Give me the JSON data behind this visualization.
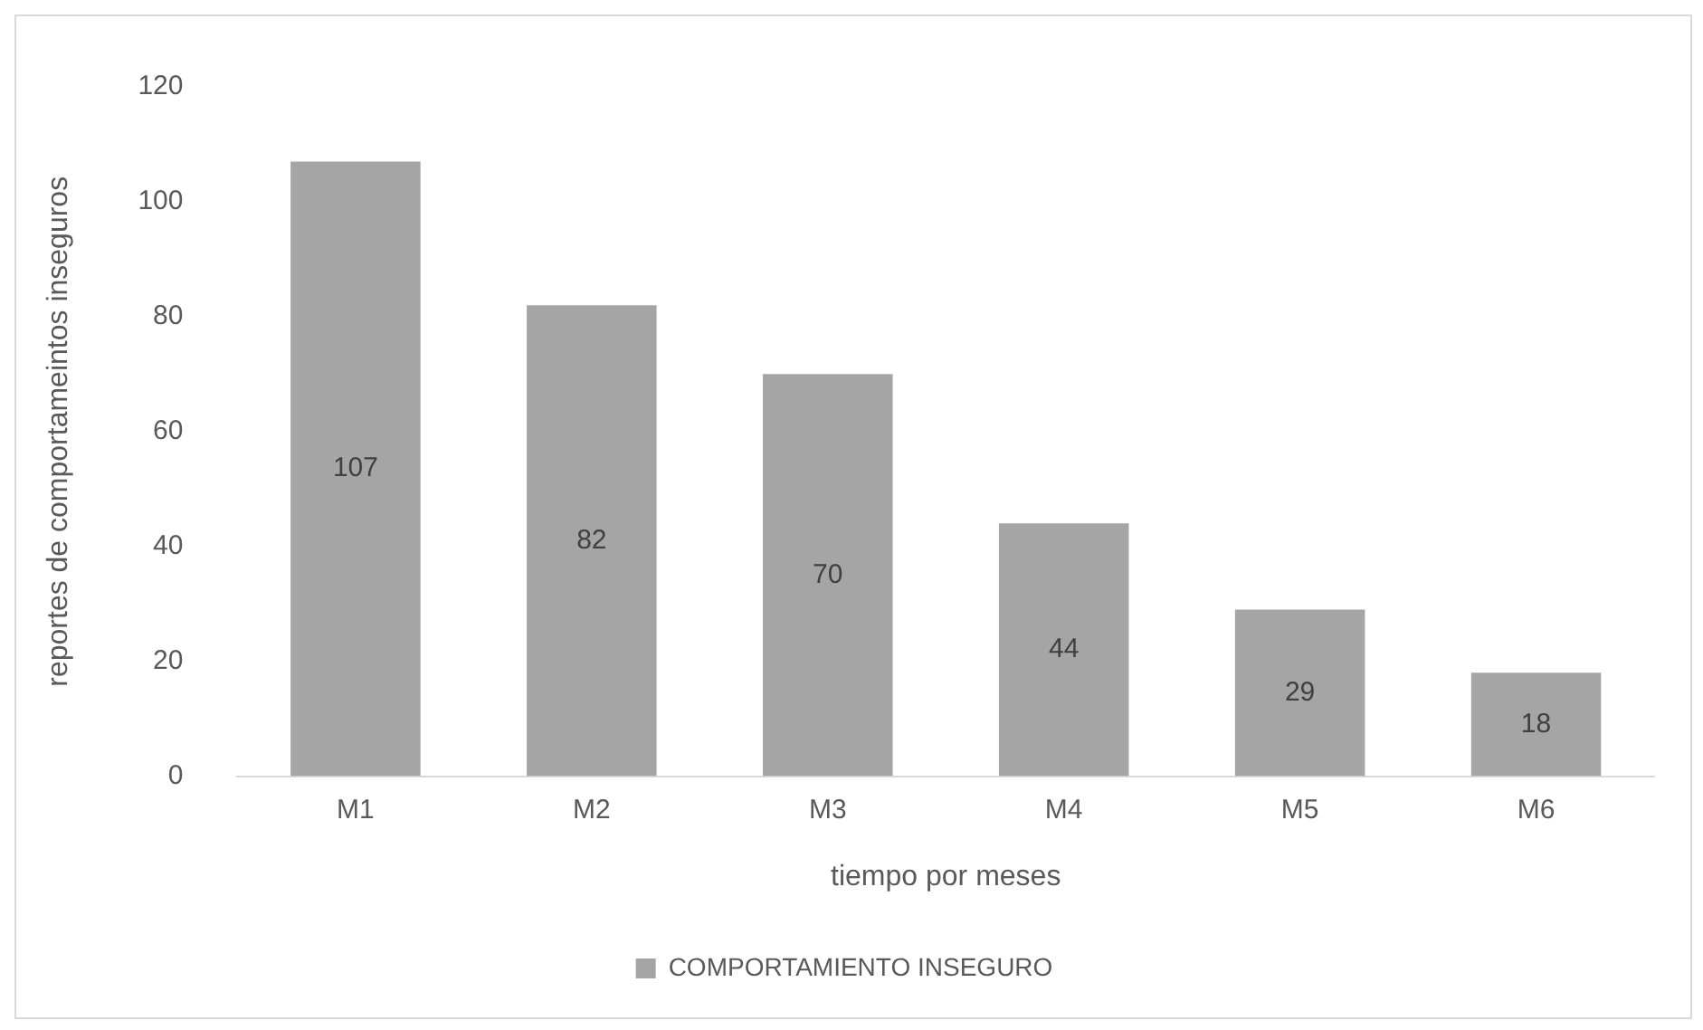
{
  "chart_data": {
    "type": "bar",
    "xlabel": "tiempo por meses",
    "ylabel": "reportes de comportameintos inseguros",
    "categories": [
      "M1",
      "M2",
      "M3",
      "M4",
      "M5",
      "M6"
    ],
    "series": [
      {
        "name": "COMPORTAMIENTO INSEGURO",
        "color": "#a5a5a5",
        "values": [
          107,
          82,
          70,
          44,
          29,
          18
        ]
      }
    ],
    "ylim": [
      0,
      120
    ],
    "yticks": [
      0,
      20,
      40,
      60,
      80,
      100,
      120
    ],
    "grid": false,
    "legend": "bottom",
    "data_labels": true
  }
}
